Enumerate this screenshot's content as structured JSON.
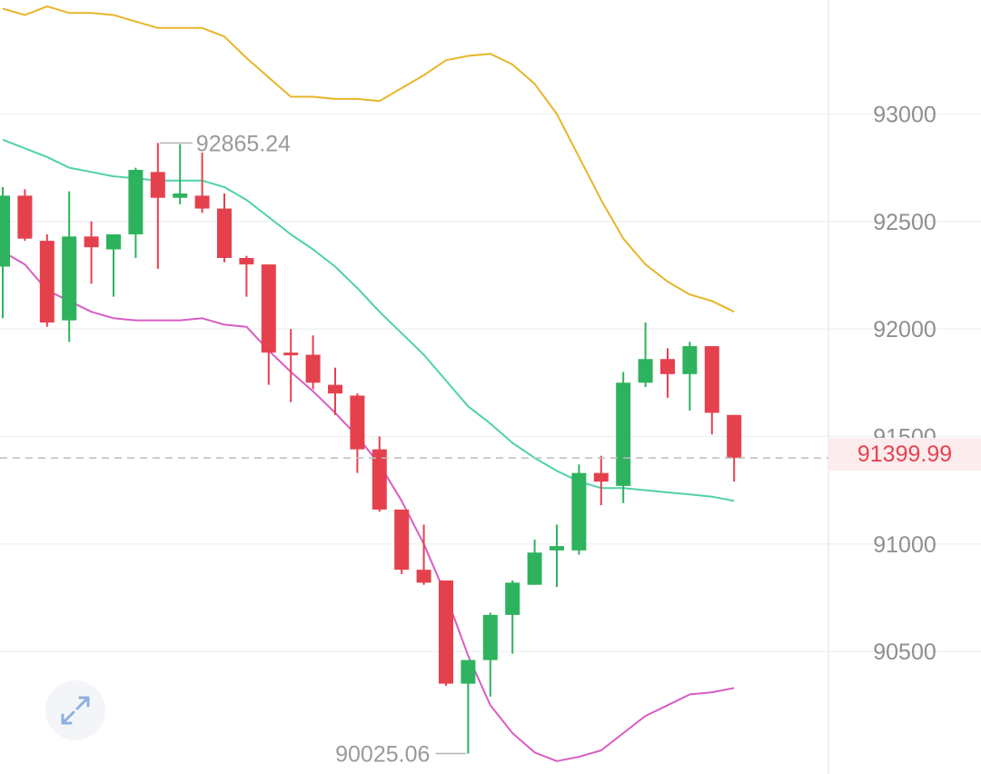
{
  "colors": {
    "up": "#2db35d",
    "down": "#e5414d",
    "upper_band": "#e8b52a",
    "middle_band": "#4fd1a9",
    "lower_band": "#d95cc4",
    "grid": "#efefef",
    "price_line": "#bdbdbd",
    "axis_text": "#8f8f8f"
  },
  "price_tag": {
    "label": "91399.99",
    "value": 91399.99
  },
  "expand_button": {
    "icon": "expand-arrows-icon"
  },
  "chart_data": {
    "type": "candlestick",
    "y_ticks": [
      {
        "value": 93000,
        "label": "93000"
      },
      {
        "value": 92500,
        "label": "92500"
      },
      {
        "value": 92000,
        "label": "92000"
      },
      {
        "value": 91500,
        "label": "91500"
      },
      {
        "value": 91000,
        "label": "91000"
      },
      {
        "value": 90500,
        "label": "90500"
      }
    ],
    "ylim": [
      89930,
      93530
    ],
    "current_price": 91399.99,
    "high_marker": {
      "value": 92865.24,
      "label": "92865.24",
      "candle_index": 7
    },
    "low_marker": {
      "value": 90025.06,
      "label": "90025.06",
      "candle_index": 21
    },
    "candles": [
      {
        "o": 92290,
        "h": 92660,
        "l": 92050,
        "c": 92620
      },
      {
        "o": 92620,
        "h": 92650,
        "l": 92410,
        "c": 92420
      },
      {
        "o": 92410,
        "h": 92440,
        "l": 92010,
        "c": 92030
      },
      {
        "o": 92040,
        "h": 92640,
        "l": 91940,
        "c": 92430
      },
      {
        "o": 92430,
        "h": 92500,
        "l": 92210,
        "c": 92380
      },
      {
        "o": 92370,
        "h": 92440,
        "l": 92150,
        "c": 92440
      },
      {
        "o": 92440,
        "h": 92750,
        "l": 92330,
        "c": 92740
      },
      {
        "o": 92730,
        "h": 92865,
        "l": 92280,
        "c": 92610
      },
      {
        "o": 92610,
        "h": 92860,
        "l": 92580,
        "c": 92630
      },
      {
        "o": 92620,
        "h": 92820,
        "l": 92540,
        "c": 92560
      },
      {
        "o": 92560,
        "h": 92630,
        "l": 92310,
        "c": 92330
      },
      {
        "o": 92330,
        "h": 92340,
        "l": 92150,
        "c": 92300
      },
      {
        "o": 92300,
        "h": 92300,
        "l": 91740,
        "c": 91890
      },
      {
        "o": 91890,
        "h": 92000,
        "l": 91660,
        "c": 91880
      },
      {
        "o": 91880,
        "h": 91970,
        "l": 91720,
        "c": 91750
      },
      {
        "o": 91740,
        "h": 91820,
        "l": 91600,
        "c": 91700
      },
      {
        "o": 91690,
        "h": 91700,
        "l": 91330,
        "c": 91440
      },
      {
        "o": 91440,
        "h": 91500,
        "l": 91150,
        "c": 91160
      },
      {
        "o": 91160,
        "h": 91160,
        "l": 90860,
        "c": 90880
      },
      {
        "o": 90880,
        "h": 91090,
        "l": 90810,
        "c": 90820
      },
      {
        "o": 90830,
        "h": 90830,
        "l": 90340,
        "c": 90350
      },
      {
        "o": 90350,
        "h": 90460,
        "l": 90025,
        "c": 90460
      },
      {
        "o": 90460,
        "h": 90680,
        "l": 90290,
        "c": 90670
      },
      {
        "o": 90670,
        "h": 90830,
        "l": 90490,
        "c": 90820
      },
      {
        "o": 90810,
        "h": 91020,
        "l": 90810,
        "c": 90960
      },
      {
        "o": 90970,
        "h": 91090,
        "l": 90800,
        "c": 90990
      },
      {
        "o": 90970,
        "h": 91370,
        "l": 90950,
        "c": 91330
      },
      {
        "o": 91330,
        "h": 91410,
        "l": 91180,
        "c": 91290
      },
      {
        "o": 91270,
        "h": 91800,
        "l": 91190,
        "c": 91750
      },
      {
        "o": 91750,
        "h": 92030,
        "l": 91730,
        "c": 91860
      },
      {
        "o": 91860,
        "h": 91910,
        "l": 91680,
        "c": 91790
      },
      {
        "o": 91790,
        "h": 91940,
        "l": 91620,
        "c": 91920
      },
      {
        "o": 91920,
        "h": 91920,
        "l": 91510,
        "c": 91610
      },
      {
        "o": 91600,
        "h": 91600,
        "l": 91290,
        "c": 91400
      }
    ],
    "bands": {
      "upper": [
        93490,
        93460,
        93500,
        93470,
        93470,
        93460,
        93430,
        93400,
        93400,
        93400,
        93360,
        93260,
        93170,
        93080,
        93080,
        93070,
        93070,
        93060,
        93120,
        93180,
        93250,
        93270,
        93280,
        93230,
        93140,
        93000,
        92800,
        92600,
        92420,
        92300,
        92220,
        92160,
        92130,
        92080
      ],
      "middle": [
        92880,
        92840,
        92800,
        92750,
        92730,
        92710,
        92700,
        92690,
        92690,
        92690,
        92660,
        92600,
        92520,
        92440,
        92370,
        92290,
        92190,
        92080,
        91980,
        91880,
        91760,
        91640,
        91560,
        91470,
        91400,
        91340,
        91290,
        91260,
        91260,
        91250,
        91240,
        91230,
        91220,
        91200
      ],
      "lower": [
        92360,
        92300,
        92180,
        92130,
        92080,
        92050,
        92040,
        92040,
        92040,
        92050,
        92020,
        92010,
        91900,
        91800,
        91710,
        91610,
        91500,
        91370,
        91200,
        91000,
        90760,
        90480,
        90250,
        90120,
        90030,
        89990,
        90010,
        90040,
        90120,
        90200,
        90250,
        90300,
        90310,
        90330
      ]
    }
  }
}
